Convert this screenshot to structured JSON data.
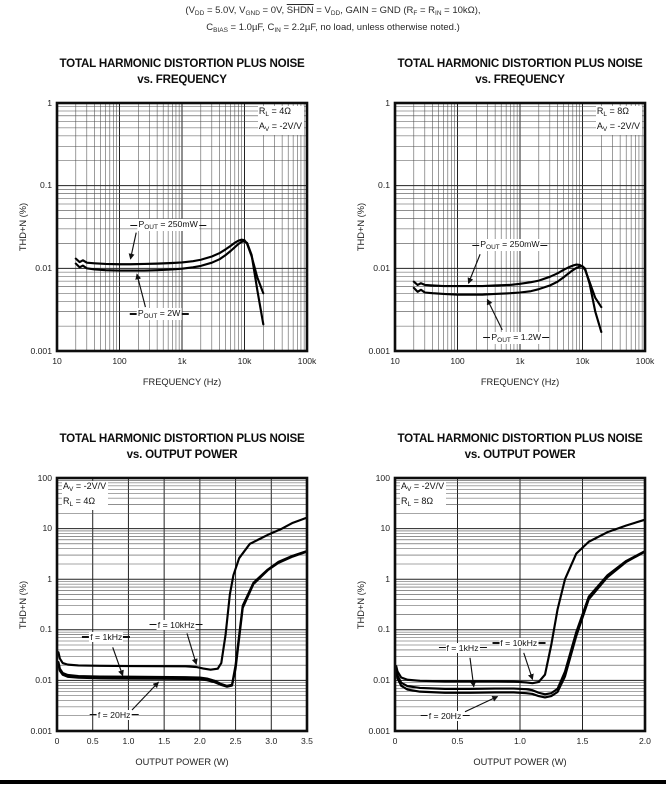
{
  "header": {
    "line1": [
      {
        "t": "(V"
      },
      {
        "s": "DD"
      },
      {
        "t": " = 5.0V, V"
      },
      {
        "s": "GND"
      },
      {
        "t": " = 0V, "
      },
      {
        "o": "SHDN"
      },
      {
        "t": " = V"
      },
      {
        "s": "DD"
      },
      {
        "t": ", GAIN = GND (R"
      },
      {
        "s": "F"
      },
      {
        "t": " = R"
      },
      {
        "s": "IN"
      },
      {
        "t": " = 10kΩ),"
      }
    ],
    "line2": [
      {
        "t": "C"
      },
      {
        "s": "BIAS"
      },
      {
        "t": " = 1.0µF, C"
      },
      {
        "s": "IN"
      },
      {
        "t": " = 2.2µF, no load, unless otherwise noted.)"
      }
    ]
  },
  "colors": {
    "ink": "#111111",
    "curve": "#000000",
    "grid_minor": "#4d4d4d",
    "grid_major": "#222222",
    "border": "#0d0d0d"
  },
  "chart_data": [
    {
      "id": "thd-vs-frequency-4ohm",
      "type": "line",
      "title": [
        "TOTAL HARMONIC DISTORTION PLUS NOISE",
        "vs. FREQUENCY"
      ],
      "xlabel": "FREQUENCY (Hz)",
      "ylabel": "THD+N (%)",
      "x_scale": "log",
      "y_scale": "log",
      "xlim": [
        10,
        100000
      ],
      "ylim": [
        0.001,
        1
      ],
      "x_ticks": [
        {
          "v": 10,
          "l": "10"
        },
        {
          "v": 100,
          "l": "100"
        },
        {
          "v": 1000,
          "l": "1k"
        },
        {
          "v": 10000,
          "l": "10k"
        },
        {
          "v": 100000,
          "l": "100k"
        }
      ],
      "y_ticks": [
        {
          "v": 1,
          "l": "1"
        },
        {
          "v": 0.1,
          "l": "0.1"
        },
        {
          "v": 0.01,
          "l": "0.01"
        },
        {
          "v": 0.001,
          "l": "0.001"
        }
      ],
      "corner_pos": "tr",
      "corner_lines": [
        [
          {
            "t": "R"
          },
          {
            "s": "L"
          },
          {
            "t": " = 4Ω"
          }
        ],
        [
          {
            "t": "A"
          },
          {
            "s": "V"
          },
          {
            "t": " = -2V/V"
          }
        ]
      ],
      "series": [
        {
          "name": "POUT = 250mW",
          "x": [
            20,
            23,
            26,
            30,
            40,
            60,
            100,
            150,
            250,
            400,
            700,
            1000,
            1500,
            2000,
            3000,
            4000,
            5000,
            6000,
            7000,
            8000,
            9000,
            10000,
            11000,
            13000,
            16000,
            20000
          ],
          "y": [
            0.0131,
            0.0119,
            0.0125,
            0.0117,
            0.0115,
            0.0113,
            0.0112,
            0.0112,
            0.0113,
            0.0114,
            0.0116,
            0.0118,
            0.0122,
            0.0127,
            0.0139,
            0.0153,
            0.017,
            0.0187,
            0.0204,
            0.0216,
            0.0222,
            0.0219,
            0.0198,
            0.014,
            0.0078,
            0.005
          ]
        },
        {
          "name": "POUT = 2W",
          "x": [
            20,
            23,
            26,
            30,
            40,
            60,
            100,
            150,
            250,
            400,
            700,
            1000,
            1500,
            2000,
            3000,
            4000,
            5000,
            6000,
            7000,
            8000,
            9000,
            10000,
            11000,
            13000,
            16000,
            20000
          ],
          "y": [
            0.0114,
            0.0103,
            0.0108,
            0.01,
            0.0097,
            0.0095,
            0.0094,
            0.0094,
            0.0094,
            0.0095,
            0.0097,
            0.0099,
            0.0103,
            0.0107,
            0.0117,
            0.0129,
            0.0145,
            0.0162,
            0.018,
            0.0197,
            0.0209,
            0.0212,
            0.0203,
            0.0145,
            0.0055,
            0.0021
          ]
        }
      ],
      "labels": [
        {
          "segs": [
            {
              "t": "P"
            },
            {
              "s": "OUT"
            },
            {
              "t": " = 250mW"
            }
          ],
          "cx": 600,
          "cy": 0.033,
          "sx": 185,
          "sy": 0.027,
          "ex": 150,
          "ey": 0.013
        },
        {
          "segs": [
            {
              "t": "P"
            },
            {
              "s": "OUT"
            },
            {
              "t": " = 2W"
            }
          ],
          "cx": 430,
          "cy": 0.0028,
          "sx": 260,
          "sy": 0.0034,
          "ex": 190,
          "ey": 0.0085
        }
      ]
    },
    {
      "id": "thd-vs-frequency-8ohm",
      "type": "line",
      "title": [
        "TOTAL HARMONIC DISTORTION PLUS NOISE",
        "vs. FREQUENCY"
      ],
      "xlabel": "FREQUENCY (Hz)",
      "ylabel": "THD+N (%)",
      "x_scale": "log",
      "y_scale": "log",
      "xlim": [
        10,
        100000
      ],
      "ylim": [
        0.001,
        1
      ],
      "x_ticks": [
        {
          "v": 10,
          "l": "10"
        },
        {
          "v": 100,
          "l": "100"
        },
        {
          "v": 1000,
          "l": "1k"
        },
        {
          "v": 10000,
          "l": "10k"
        },
        {
          "v": 100000,
          "l": "100k"
        }
      ],
      "y_ticks": [
        {
          "v": 1,
          "l": "1"
        },
        {
          "v": 0.1,
          "l": "0.1"
        },
        {
          "v": 0.01,
          "l": "0.01"
        },
        {
          "v": 0.001,
          "l": "0.001"
        }
      ],
      "corner_pos": "tr",
      "corner_lines": [
        [
          {
            "t": "R"
          },
          {
            "s": "L"
          },
          {
            "t": " = 8Ω"
          }
        ],
        [
          {
            "t": "A"
          },
          {
            "s": "V"
          },
          {
            "t": " = -2V/V"
          }
        ]
      ],
      "series": [
        {
          "name": "POUT = 250mW",
          "x": [
            20,
            23,
            26,
            30,
            40,
            60,
            100,
            150,
            250,
            400,
            700,
            1000,
            1500,
            2000,
            3000,
            4000,
            5000,
            6000,
            7000,
            8000,
            9000,
            10000,
            11000,
            13000,
            16000,
            20000
          ],
          "y": [
            0.0069,
            0.0063,
            0.0066,
            0.0063,
            0.0062,
            0.0061,
            0.0061,
            0.0061,
            0.0061,
            0.0062,
            0.0063,
            0.0065,
            0.0068,
            0.0071,
            0.0079,
            0.0087,
            0.0096,
            0.0103,
            0.0108,
            0.0111,
            0.011,
            0.0105,
            0.0096,
            0.0068,
            0.0044,
            0.0034
          ]
        },
        {
          "name": "POUT = 1.2W",
          "x": [
            20,
            23,
            26,
            30,
            40,
            60,
            100,
            150,
            250,
            400,
            700,
            1000,
            1500,
            2000,
            3000,
            4000,
            5000,
            6000,
            7000,
            8000,
            9000,
            10000,
            11000,
            13000,
            16000,
            20000
          ],
          "y": [
            0.0058,
            0.0052,
            0.0055,
            0.0051,
            0.005,
            0.0049,
            0.0048,
            0.0048,
            0.0048,
            0.0049,
            0.005,
            0.0051,
            0.0053,
            0.0056,
            0.0062,
            0.0069,
            0.0078,
            0.0087,
            0.0095,
            0.0101,
            0.0105,
            0.0106,
            0.0099,
            0.0065,
            0.003,
            0.0017
          ]
        }
      ],
      "labels": [
        {
          "segs": [
            {
              "t": "P"
            },
            {
              "s": "OUT"
            },
            {
              "t": " = 250mW"
            }
          ],
          "cx": 690,
          "cy": 0.019,
          "sx": 230,
          "sy": 0.0148,
          "ex": 150,
          "ey": 0.0066
        },
        {
          "segs": [
            {
              "t": "P"
            },
            {
              "s": "OUT"
            },
            {
              "t": " = 1.2W"
            }
          ],
          "cx": 870,
          "cy": 0.00145,
          "sx": 520,
          "sy": 0.0018,
          "ex": 300,
          "ey": 0.0042
        }
      ]
    },
    {
      "id": "thd-vs-output-power-4ohm",
      "type": "line",
      "title": [
        "TOTAL HARMONIC DISTORTION PLUS NOISE",
        "vs. OUTPUT POWER"
      ],
      "xlabel": "OUTPUT POWER (W)",
      "ylabel": "THD+N (%)",
      "x_scale": "linear",
      "y_scale": "log",
      "xlim": [
        0,
        3.5
      ],
      "ylim": [
        0.001,
        100
      ],
      "x_ticks": [
        {
          "v": 0,
          "l": "0"
        },
        {
          "v": 0.5,
          "l": "0.5"
        },
        {
          "v": 1,
          "l": "1.0"
        },
        {
          "v": 1.5,
          "l": "1.5"
        },
        {
          "v": 2,
          "l": "2.0"
        },
        {
          "v": 2.5,
          "l": "2.5"
        },
        {
          "v": 3,
          "l": "3.0"
        },
        {
          "v": 3.5,
          "l": "3.5"
        }
      ],
      "y_ticks": [
        {
          "v": 100,
          "l": "100"
        },
        {
          "v": 10,
          "l": "10"
        },
        {
          "v": 1,
          "l": "1"
        },
        {
          "v": 0.1,
          "l": "0.1"
        },
        {
          "v": 0.01,
          "l": "0.01"
        },
        {
          "v": 0.001,
          "l": "0.001"
        }
      ],
      "corner_pos": "tl",
      "corner_lines": [
        [
          {
            "t": "A"
          },
          {
            "s": "V"
          },
          {
            "t": " = -2V/V"
          }
        ],
        [
          {
            "t": "R"
          },
          {
            "s": "L"
          },
          {
            "t": " = 4Ω"
          }
        ]
      ],
      "series": [
        {
          "name": "f = 10kHz",
          "x": [
            0.02,
            0.04,
            0.08,
            0.15,
            0.3,
            0.6,
            1.0,
            1.4,
            1.8,
            1.95,
            2.05,
            2.15,
            2.25,
            2.3,
            2.36,
            2.42,
            2.47,
            2.55,
            2.7,
            2.95,
            3.15,
            3.3,
            3.5
          ],
          "y": [
            0.036,
            0.027,
            0.022,
            0.0205,
            0.0198,
            0.0194,
            0.0192,
            0.0191,
            0.019,
            0.0184,
            0.0171,
            0.0163,
            0.017,
            0.022,
            0.08,
            0.5,
            1.2,
            2.6,
            5.0,
            7.5,
            10.0,
            13.0,
            16.5
          ]
        },
        {
          "name": "f = 1kHz",
          "x": [
            0.02,
            0.04,
            0.08,
            0.15,
            0.3,
            0.6,
            1.0,
            1.4,
            1.8,
            2.0,
            2.1,
            2.2,
            2.3,
            2.38,
            2.45,
            2.5,
            2.6,
            2.75,
            2.95,
            3.1,
            3.3,
            3.5
          ],
          "y": [
            0.023,
            0.017,
            0.014,
            0.0128,
            0.0122,
            0.0119,
            0.0118,
            0.0117,
            0.0116,
            0.0114,
            0.0109,
            0.0099,
            0.0085,
            0.0078,
            0.0082,
            0.02,
            0.3,
            0.85,
            1.55,
            2.2,
            2.9,
            3.6
          ]
        },
        {
          "name": "f = 20Hz",
          "x": [
            0.02,
            0.04,
            0.08,
            0.15,
            0.3,
            0.6,
            1.0,
            1.4,
            1.8,
            2.0,
            2.1,
            2.2,
            2.3,
            2.38,
            2.45,
            2.5,
            2.6,
            2.75,
            2.95,
            3.1,
            3.3,
            3.5
          ],
          "y": [
            0.021,
            0.0155,
            0.0129,
            0.0118,
            0.0113,
            0.011,
            0.0109,
            0.0108,
            0.0107,
            0.0105,
            0.0101,
            0.0093,
            0.0081,
            0.0075,
            0.0079,
            0.017,
            0.27,
            0.8,
            1.5,
            2.1,
            2.8,
            3.5
          ]
        }
      ],
      "labels": [
        {
          "segs": [
            {
              "t": "f = 1kHz"
            }
          ],
          "cx": 0.69,
          "cy": 0.072,
          "sx": 0.78,
          "sy": 0.045,
          "ex": 0.92,
          "ey": 0.0125
        },
        {
          "segs": [
            {
              "t": "f = 10kHz"
            }
          ],
          "cx": 1.67,
          "cy": 0.125,
          "sx": 1.82,
          "sy": 0.085,
          "ex": 1.95,
          "ey": 0.021
        },
        {
          "segs": [
            {
              "t": "f = 20Hz"
            }
          ],
          "cx": 0.8,
          "cy": 0.0021,
          "sx": 1.05,
          "sy": 0.0026,
          "ex": 1.42,
          "ey": 0.0092
        }
      ]
    },
    {
      "id": "thd-vs-output-power-8ohm",
      "type": "line",
      "title": [
        "TOTAL HARMONIC DISTORTION PLUS NOISE",
        "vs. OUTPUT POWER"
      ],
      "xlabel": "OUTPUT POWER (W)",
      "ylabel": "THD+N (%)",
      "x_scale": "linear",
      "y_scale": "log",
      "xlim": [
        0,
        2.0
      ],
      "ylim": [
        0.001,
        100
      ],
      "x_ticks": [
        {
          "v": 0,
          "l": "0"
        },
        {
          "v": 0.5,
          "l": "0.5"
        },
        {
          "v": 1,
          "l": "1.0"
        },
        {
          "v": 1.5,
          "l": "1.5"
        },
        {
          "v": 2,
          "l": "2.0"
        }
      ],
      "y_ticks": [
        {
          "v": 100,
          "l": "100"
        },
        {
          "v": 10,
          "l": "10"
        },
        {
          "v": 1,
          "l": "1"
        },
        {
          "v": 0.1,
          "l": "0.1"
        },
        {
          "v": 0.01,
          "l": "0.01"
        },
        {
          "v": 0.001,
          "l": "0.001"
        }
      ],
      "corner_pos": "tl",
      "corner_lines": [
        [
          {
            "t": "A"
          },
          {
            "s": "V"
          },
          {
            "t": " = -2V/V"
          }
        ],
        [
          {
            "t": "R"
          },
          {
            "s": "L"
          },
          {
            "t": " = 8Ω"
          }
        ]
      ],
      "series": [
        {
          "name": "f = 10kHz",
          "x": [
            0.01,
            0.02,
            0.05,
            0.1,
            0.2,
            0.4,
            0.6,
            0.8,
            0.95,
            1.05,
            1.1,
            1.15,
            1.2,
            1.25,
            1.3,
            1.36,
            1.45,
            1.55,
            1.7,
            1.85,
            2.0
          ],
          "y": [
            0.019,
            0.015,
            0.0114,
            0.0103,
            0.0098,
            0.0096,
            0.0096,
            0.0096,
            0.0095,
            0.0091,
            0.0088,
            0.0093,
            0.013,
            0.05,
            0.25,
            1.0,
            3.2,
            5.5,
            8.5,
            11.5,
            15.0
          ]
        },
        {
          "name": "f = 1kHz",
          "x": [
            0.01,
            0.02,
            0.05,
            0.1,
            0.2,
            0.4,
            0.6,
            0.8,
            0.95,
            1.05,
            1.1,
            1.15,
            1.2,
            1.25,
            1.3,
            1.36,
            1.45,
            1.55,
            1.7,
            1.85,
            2.0
          ],
          "y": [
            0.017,
            0.0125,
            0.009,
            0.0077,
            0.0071,
            0.0068,
            0.0068,
            0.0069,
            0.0069,
            0.0067,
            0.0064,
            0.0057,
            0.0053,
            0.0056,
            0.0068,
            0.015,
            0.09,
            0.45,
            1.2,
            2.3,
            3.6
          ]
        },
        {
          "name": "f = 20Hz",
          "x": [
            0.01,
            0.02,
            0.05,
            0.1,
            0.2,
            0.4,
            0.6,
            0.8,
            0.95,
            1.05,
            1.1,
            1.15,
            1.2,
            1.25,
            1.3,
            1.36,
            1.45,
            1.55,
            1.7,
            1.85,
            2.0
          ],
          "y": [
            0.015,
            0.011,
            0.0078,
            0.0066,
            0.006,
            0.0057,
            0.0057,
            0.0058,
            0.0058,
            0.0056,
            0.0054,
            0.0049,
            0.0046,
            0.0049,
            0.0059,
            0.012,
            0.075,
            0.4,
            1.1,
            2.2,
            3.5
          ]
        }
      ],
      "labels": [
        {
          "segs": [
            {
              "t": "f = 1kHz"
            }
          ],
          "cx": 0.54,
          "cy": 0.044,
          "sx": 0.6,
          "sy": 0.028,
          "ex": 0.63,
          "ey": 0.0075
        },
        {
          "segs": [
            {
              "t": "f = 10kHz"
            }
          ],
          "cx": 0.99,
          "cy": 0.055,
          "sx": 1.03,
          "sy": 0.035,
          "ex": 1.1,
          "ey": 0.0105
        },
        {
          "segs": [
            {
              "t": "f = 20Hz"
            }
          ],
          "cx": 0.4,
          "cy": 0.002,
          "sx": 0.56,
          "sy": 0.0024,
          "ex": 0.82,
          "ey": 0.0048
        }
      ]
    }
  ]
}
